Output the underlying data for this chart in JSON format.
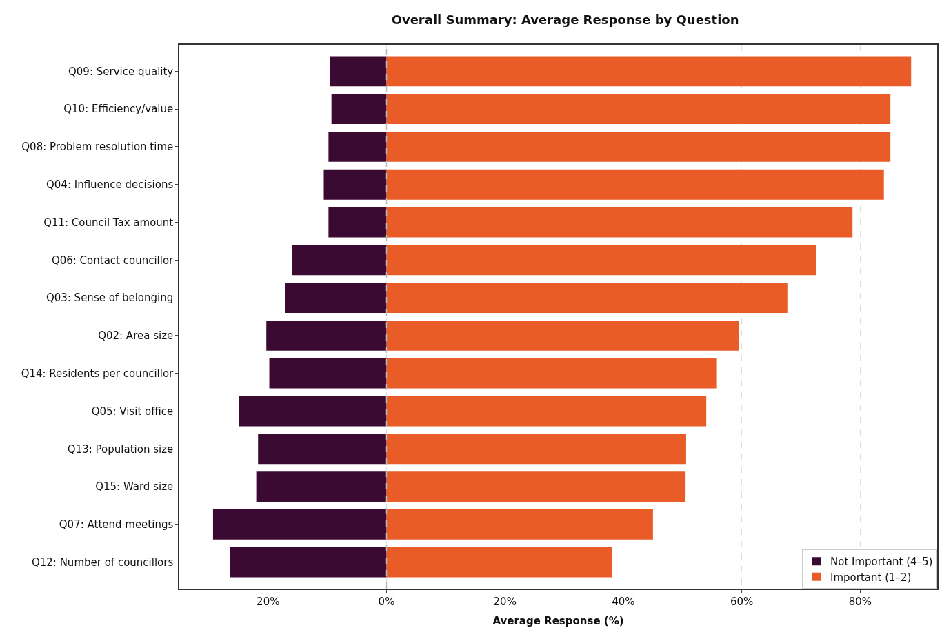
{
  "chart_data": {
    "type": "bar",
    "orientation": "horizontal",
    "stacked": true,
    "title": "Overall Summary: Average Response by Question",
    "xlabel": "Average Response (%)",
    "categories": [
      "Q09: Service quality",
      "Q10: Efficiency/value",
      "Q08: Problem resolution time",
      "Q04: Influence decisions",
      "Q11: Council Tax amount",
      "Q06: Contact councillor",
      "Q03: Sense of belonging",
      "Q02: Area size",
      "Q14: Residents per councillor",
      "Q05: Visit office",
      "Q13: Population size",
      "Q15: Ward size",
      "Q07: Attend meetings",
      "Q12: Number of councillors"
    ],
    "series": [
      {
        "name": "Not Important (4–5)",
        "color": "#3b0a33",
        "values": [
          -9.5,
          -9.3,
          -9.8,
          -10.6,
          -9.8,
          -15.9,
          -17.1,
          -20.3,
          -19.8,
          -24.9,
          -21.7,
          -22.0,
          -29.3,
          -26.4
        ]
      },
      {
        "name": "Important (1–2)",
        "color": "#e95b27",
        "values": [
          88.6,
          85.1,
          85.1,
          84.0,
          78.7,
          72.6,
          67.7,
          59.5,
          55.8,
          54.0,
          50.6,
          50.5,
          45.0,
          38.1
        ]
      }
    ],
    "xlim": [
      -35,
      93
    ],
    "xticks": [
      {
        "value": -20,
        "label": "20%"
      },
      {
        "value": 0,
        "label": "0%"
      },
      {
        "value": 20,
        "label": "20%"
      },
      {
        "value": 40,
        "label": "40%"
      },
      {
        "value": 60,
        "label": "60%"
      },
      {
        "value": 80,
        "label": "80%"
      }
    ],
    "ref_lines": [
      {
        "axis": "x",
        "value": 0,
        "color": "#bbbbbb",
        "line_style": "dashed"
      }
    ],
    "grid": "x",
    "legend": "bottom right"
  }
}
